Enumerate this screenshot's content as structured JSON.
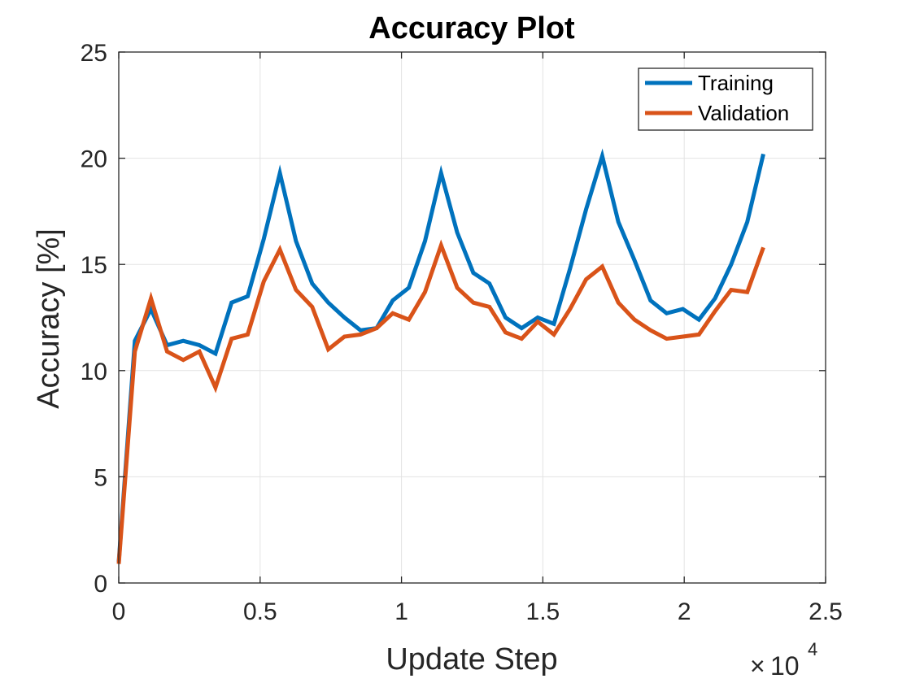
{
  "chart_data": {
    "type": "line",
    "title": "Accuracy Plot",
    "xlabel": "Update Step",
    "ylabel": "Accuracy [%]",
    "x_exponent_base": "10",
    "x_exponent_power": "4",
    "xlim": [
      0,
      25000
    ],
    "ylim": [
      0,
      25
    ],
    "xticks": [
      0,
      5000,
      10000,
      15000,
      20000,
      25000
    ],
    "xtick_labels": [
      "0",
      "0.5",
      "1",
      "1.5",
      "2",
      "2.5"
    ],
    "yticks": [
      0,
      5,
      10,
      15,
      20,
      25
    ],
    "ytick_labels": [
      "0",
      "5",
      "10",
      "15",
      "20",
      "25"
    ],
    "grid": true,
    "legend_position": "top-right",
    "x": [
      0,
      570,
      1140,
      1710,
      2280,
      2850,
      3420,
      3990,
      4560,
      5130,
      5700,
      6270,
      6840,
      7410,
      7980,
      8550,
      9120,
      9690,
      10260,
      10830,
      11400,
      11970,
      12540,
      13110,
      13680,
      14250,
      14820,
      15390,
      15960,
      16530,
      17100,
      17670,
      18240,
      18810,
      19380,
      19950,
      20520,
      21090,
      21660,
      22230,
      22800
    ],
    "series": [
      {
        "name": "Training",
        "color": "#0072BD",
        "values": [
          1.0,
          11.4,
          12.9,
          11.2,
          11.4,
          11.2,
          10.8,
          13.2,
          13.5,
          16.2,
          19.3,
          16.1,
          14.1,
          13.2,
          12.5,
          11.9,
          12.0,
          13.3,
          13.9,
          16.1,
          19.3,
          16.5,
          14.6,
          14.1,
          12.5,
          12.0,
          12.5,
          12.2,
          14.8,
          17.6,
          20.1,
          17.0,
          15.2,
          13.3,
          12.7,
          12.9,
          12.4,
          13.4,
          15.0,
          17.0,
          20.2
        ]
      },
      {
        "name": "Validation",
        "color": "#D95319",
        "values": [
          0.9,
          10.9,
          13.4,
          10.9,
          10.5,
          10.9,
          9.2,
          11.5,
          11.7,
          14.2,
          15.7,
          13.8,
          13.0,
          11.0,
          11.6,
          11.7,
          12.0,
          12.7,
          12.4,
          13.7,
          15.9,
          13.9,
          13.2,
          13.0,
          11.8,
          11.5,
          12.3,
          11.7,
          12.9,
          14.3,
          14.9,
          13.2,
          12.4,
          11.9,
          11.5,
          11.6,
          11.7,
          12.8,
          13.8,
          13.7,
          15.8
        ]
      }
    ]
  }
}
